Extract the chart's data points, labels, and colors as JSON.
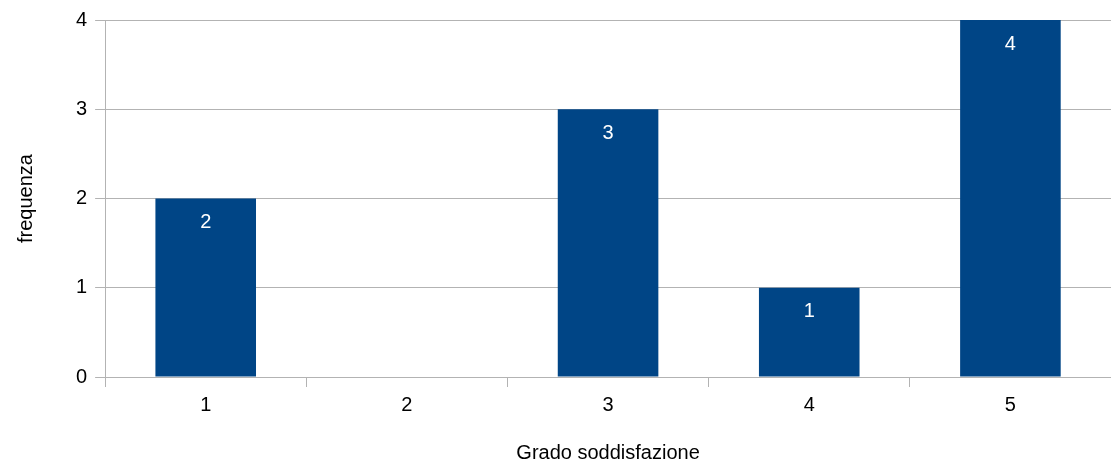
{
  "chart_data": {
    "type": "bar",
    "xlabel": "Grado soddisfazione",
    "ylabel": "frequenza",
    "categories": [
      "1",
      "2",
      "3",
      "4",
      "5"
    ],
    "values": [
      2,
      0,
      3,
      1,
      4
    ],
    "value_labels": [
      "2",
      null,
      "3",
      "1",
      "4"
    ],
    "color": "#004586",
    "ylim": [
      0,
      4
    ],
    "yticks": [
      0,
      1,
      2,
      3,
      4
    ],
    "grid": "y",
    "legend": false
  }
}
